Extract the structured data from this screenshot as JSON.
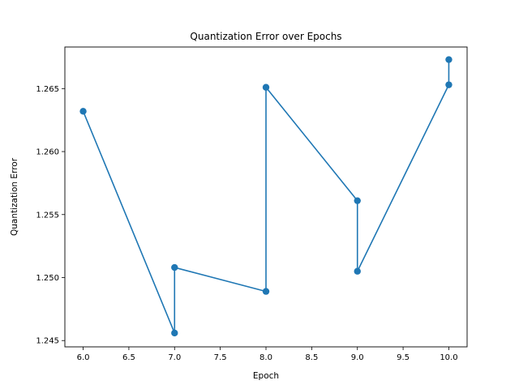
{
  "chart_data": {
    "type": "line",
    "title": "Quantization Error over Epochs",
    "xlabel": "Epoch",
    "ylabel": "Quantization Error",
    "xlim": [
      5.8,
      10.2
    ],
    "ylim": [
      1.2445,
      1.2683
    ],
    "xticks": [
      "6.0",
      "6.5",
      "7.0",
      "7.5",
      "8.0",
      "8.5",
      "9.0",
      "9.5",
      "10.0"
    ],
    "yticks": [
      "1.245",
      "1.250",
      "1.255",
      "1.260",
      "1.265"
    ],
    "grid": false,
    "legend": "none",
    "series": [
      {
        "color": "#1f77b4",
        "marker": "circle",
        "x": [
          6,
          7,
          7,
          8,
          8,
          9,
          9,
          10,
          10
        ],
        "y": [
          1.2632,
          1.2456,
          1.2508,
          1.2489,
          1.2651,
          1.2561,
          1.2505,
          1.2653,
          1.2673
        ]
      }
    ]
  }
}
